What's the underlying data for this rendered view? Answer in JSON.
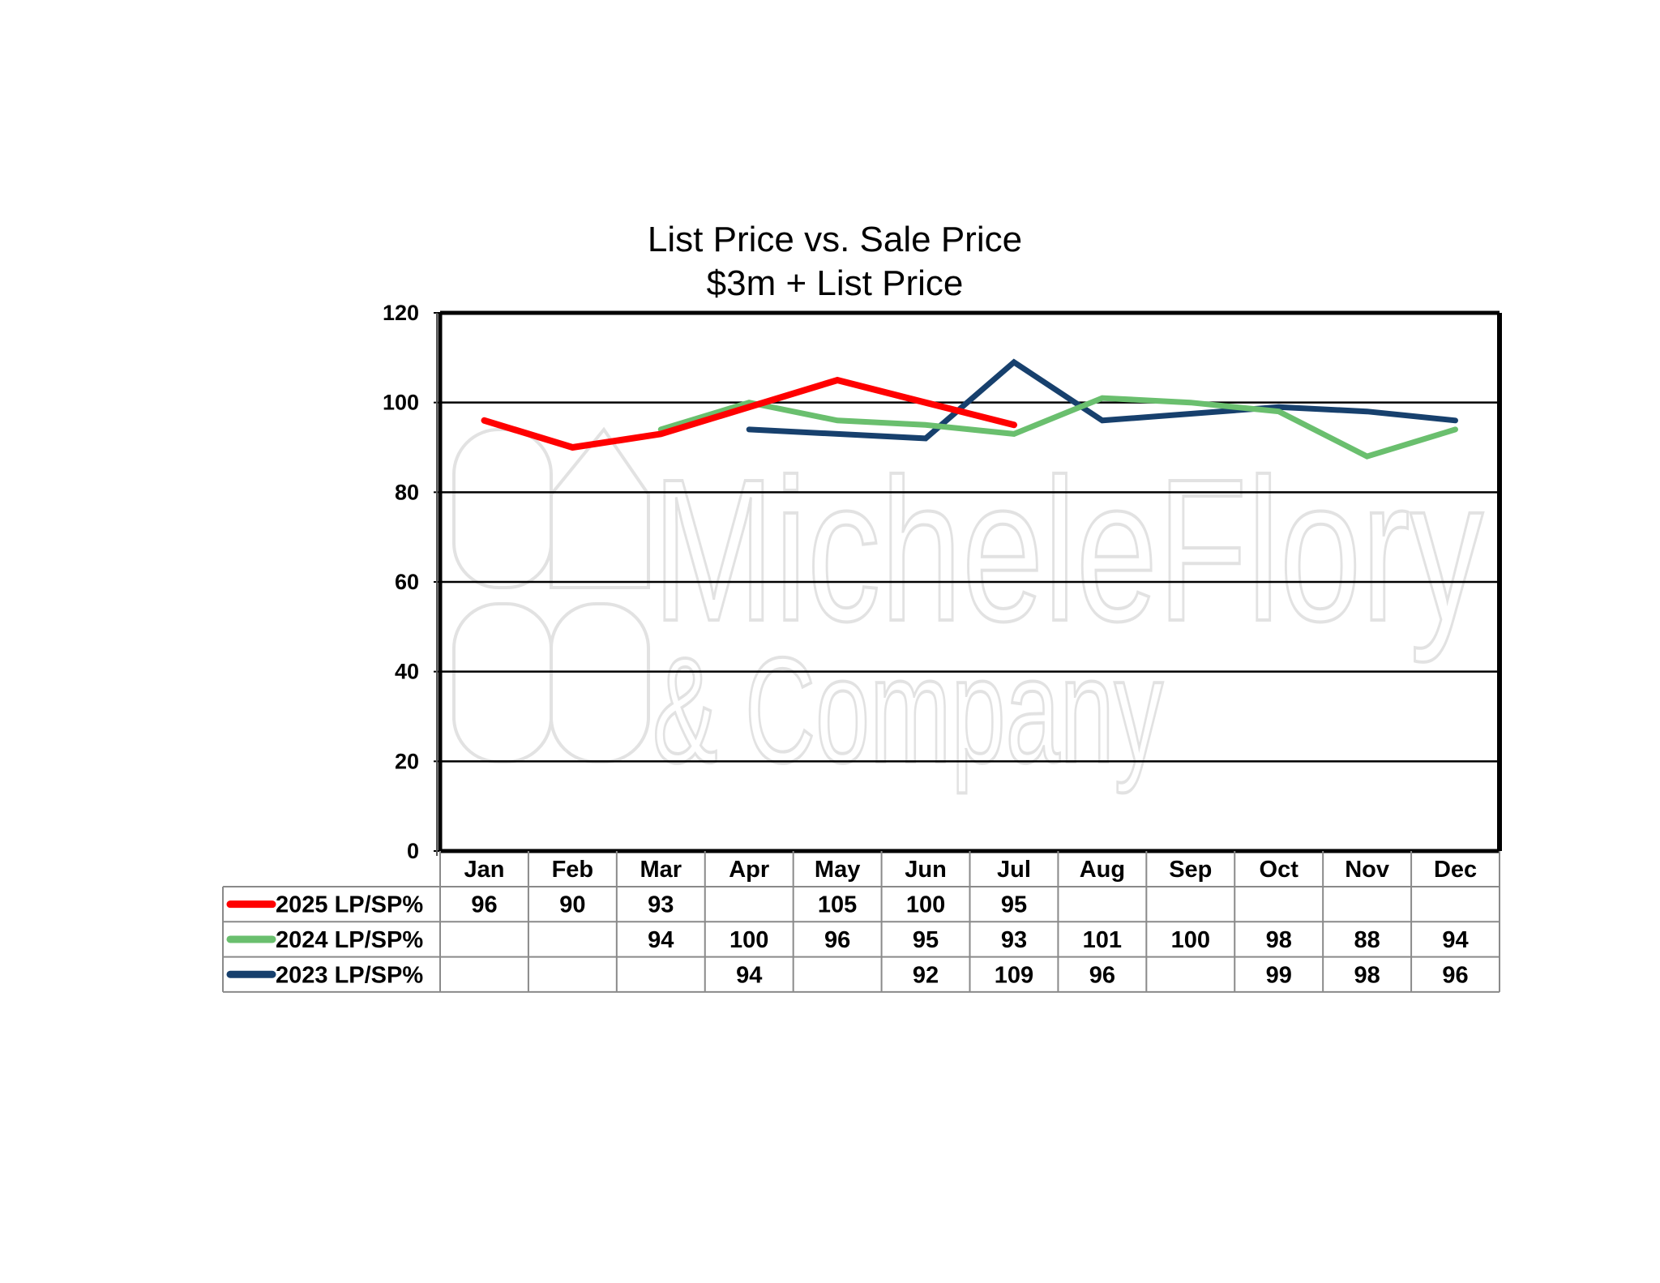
{
  "chart_data": {
    "type": "line",
    "title": "List Price vs. Sale Price",
    "subtitle": "$3m + List Price",
    "categories": [
      "Jan",
      "Feb",
      "Mar",
      "Apr",
      "May",
      "Jun",
      "Jul",
      "Aug",
      "Sep",
      "Oct",
      "Nov",
      "Dec"
    ],
    "ylim": [
      0,
      120
    ],
    "yticks": [
      0,
      20,
      40,
      60,
      80,
      100,
      120
    ],
    "grid": true,
    "legend": "data-table-left",
    "watermark": {
      "line1": "MicheleFlory",
      "line2": "& Company"
    },
    "series": [
      {
        "name": "2025 LP/SP%",
        "color": "#ff0000",
        "values": [
          96,
          90,
          93,
          null,
          105,
          100,
          95,
          null,
          null,
          null,
          null,
          null
        ]
      },
      {
        "name": "2024 LP/SP%",
        "color": "#6abf6e",
        "values": [
          null,
          null,
          94,
          100,
          96,
          95,
          93,
          101,
          100,
          98,
          88,
          94
        ]
      },
      {
        "name": "2023 LP/SP%",
        "color": "#17406d",
        "values": [
          null,
          null,
          null,
          94,
          null,
          92,
          109,
          96,
          null,
          99,
          98,
          96
        ]
      }
    ]
  }
}
